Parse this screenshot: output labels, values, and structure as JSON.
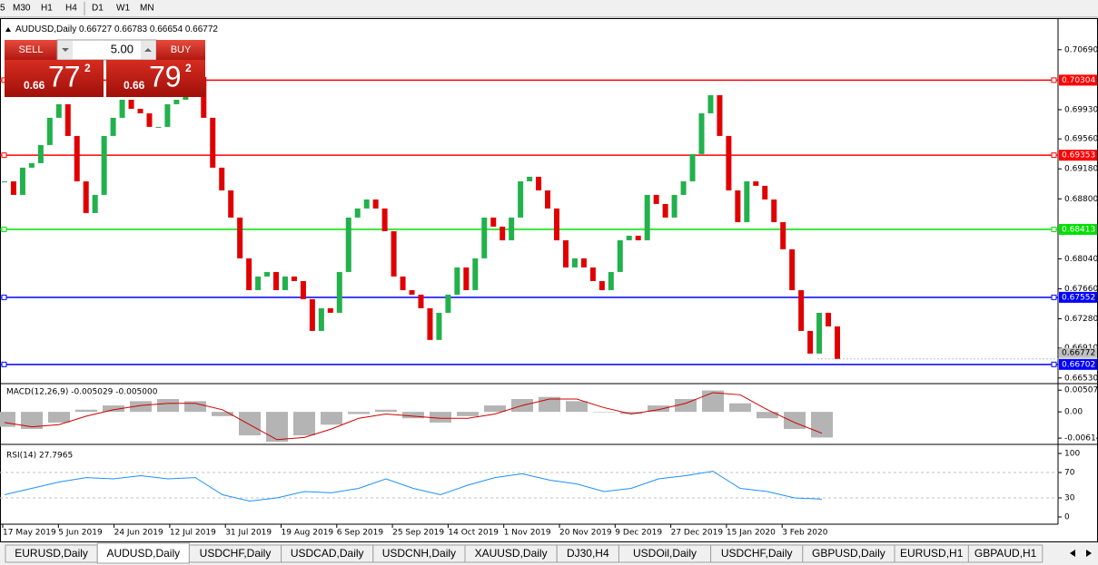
{
  "toolbar": {
    "timeframes": [
      "5",
      "M30",
      "H1",
      "H4",
      "D1",
      "W1",
      "MN"
    ]
  },
  "chart": {
    "symbol": "AUDUSD,Daily",
    "ohlc": [
      0.66727,
      0.66783,
      0.66654,
      0.66772
    ]
  },
  "trade_panel": {
    "sell": "SELL",
    "buy": "BUY",
    "lot": "5.00",
    "bid": {
      "big": "0.66",
      "pips": "77",
      "fraction": "2"
    },
    "ask": {
      "big": "0.66",
      "pips": "79",
      "fraction": "2"
    }
  },
  "price_chart": {
    "type": "candlestick",
    "closes": [
      0.69022,
      0.6885,
      0.69195,
      0.69252,
      0.69482,
      0.69827,
      0.69999,
      0.69597,
      0.69022,
      0.6862,
      0.6885,
      0.69597,
      0.69827,
      0.70056,
      0.69941,
      0.69884,
      0.69712,
      0.69712,
      0.69999,
      0.70056,
      0.70114,
      0.70344,
      0.69827,
      0.69195,
      0.68907,
      0.68563,
      0.68046,
      0.67643,
      0.67816,
      0.67873,
      0.67643,
      0.67816,
      0.67758,
      0.67529,
      0.67126,
      0.67414,
      0.67356,
      0.67873,
      0.68563,
      0.68678,
      0.68792,
      0.68678,
      0.6839,
      0.67816,
      0.67643,
      0.67586,
      0.67414,
      0.67012,
      0.67356,
      0.67586,
      0.67931,
      0.67643,
      0.68046,
      0.68563,
      0.68448,
      0.68275,
      0.68563,
      0.69022,
      0.6908,
      0.68907,
      0.68678,
      0.68275,
      0.67931,
      0.68046,
      0.67931,
      0.67758,
      0.67643,
      0.67873,
      0.68275,
      0.68333,
      0.68275,
      0.6885,
      0.68735,
      0.68563,
      0.6885,
      0.69022,
      0.69367,
      0.69884,
      0.70114,
      0.69597,
      0.68907,
      0.68505,
      0.69022,
      0.68965,
      0.68792,
      0.68505,
      0.68161,
      0.67643,
      0.67126,
      0.66839,
      0.67356,
      0.67184,
      0.66772
    ],
    "up_color": "#22b14c",
    "down_color": "#e00000",
    "ylim": [
      0.6647,
      0.7109
    ],
    "yticks": [
      {
        "value": 0.7069,
        "label": "0.70690"
      },
      {
        "value": 0.6993,
        "label": "0.69930"
      },
      {
        "value": 0.6956,
        "label": "0.69560"
      },
      {
        "value": 0.6918,
        "label": "0.69180"
      },
      {
        "value": 0.688,
        "label": "0.68800"
      },
      {
        "value": 0.6804,
        "label": "0.68040"
      },
      {
        "value": 0.6766,
        "label": "0.67660"
      },
      {
        "value": 0.6728,
        "label": "0.67280"
      },
      {
        "value": 0.6691,
        "label": "0.66910"
      },
      {
        "value": 0.6653,
        "label": "0.66530"
      }
    ],
    "levels": [
      {
        "value": 0.70304,
        "color": "#ff0000"
      },
      {
        "value": 0.69353,
        "color": "#ff0000"
      },
      {
        "value": 0.68413,
        "color": "#00e000"
      },
      {
        "value": 0.67552,
        "color": "#0000ff"
      },
      {
        "value": 0.66702,
        "color": "#0000ff"
      }
    ],
    "current_price": 0.66772,
    "x_labels": [
      "17 May 2019",
      "5 Jun 2019",
      "24 Jun 2019",
      "12 Jul 2019",
      "31 Jul 2019",
      "19 Aug 2019",
      "6 Sep 2019",
      "25 Sep 2019",
      "14 Oct 2019",
      "1 Nov 2019",
      "20 Nov 2019",
      "9 Dec 2019",
      "27 Dec 2019",
      "15 Jan 2020",
      "3 Feb 2020"
    ]
  },
  "macd": {
    "type": "bar",
    "title": "MACD(12,26,9) -0.005029 -0.005000",
    "histogram": [
      -0.0035,
      -0.004,
      -0.0025,
      0.0005,
      0.0015,
      0.0025,
      0.003,
      0.0025,
      -0.001,
      -0.0055,
      -0.007,
      -0.0055,
      -0.003,
      -0.0005,
      0.0005,
      -0.0015,
      -0.0025,
      -0.001,
      0.0015,
      0.003,
      0.0035,
      0.0025,
      0,
      -0.0005,
      0.0015,
      0.003,
      0.005,
      0.002,
      -0.0015,
      -0.004,
      -0.006
    ],
    "signal": [
      -0.0025,
      -0.0035,
      -0.003,
      -0.001,
      0.0005,
      0.0015,
      0.002,
      0.002,
      0.0005,
      -0.003,
      -0.0065,
      -0.006,
      -0.004,
      -0.0015,
      -0.0005,
      -0.001,
      -0.0015,
      -0.0015,
      -0.0005,
      0.0015,
      0.003,
      0.003,
      0.001,
      -0.0005,
      0.0005,
      0.002,
      0.0045,
      0.004,
      0.0005,
      -0.0025,
      -0.005
    ],
    "bar_color": "#b4b4b4",
    "line_color": "#d00000",
    "ylim": [
      -0.0074,
      0.0064
    ],
    "yticks": [
      0.005076,
      {
        "value": 0,
        "label": "0.00"
      },
      -0.006148
    ]
  },
  "rsi": {
    "type": "line",
    "title": "RSI(14) 27.7965",
    "values": [
      35,
      45,
      55,
      62,
      60,
      65,
      60,
      62,
      35,
      25,
      30,
      40,
      38,
      45,
      60,
      45,
      35,
      50,
      62,
      68,
      58,
      52,
      40,
      45,
      60,
      65,
      72,
      45,
      40,
      30,
      28
    ],
    "color": "#1e90ff",
    "ylim": [
      -11.4,
      111.4
    ],
    "yticks": [
      100,
      70,
      30,
      0
    ]
  },
  "tabs": [
    "EURUSD,Daily",
    "AUDUSD,Daily",
    "USDCHF,Daily",
    "USDCAD,Daily",
    "USDCNH,Daily",
    "XAUUSD,Daily",
    "DJ30,H4",
    "USDOil,Daily",
    "USDCHF,Daily",
    "GBPUSD,Daily",
    "EURUSD,H1",
    "GBPAUD,H1"
  ],
  "active_tab": 1
}
